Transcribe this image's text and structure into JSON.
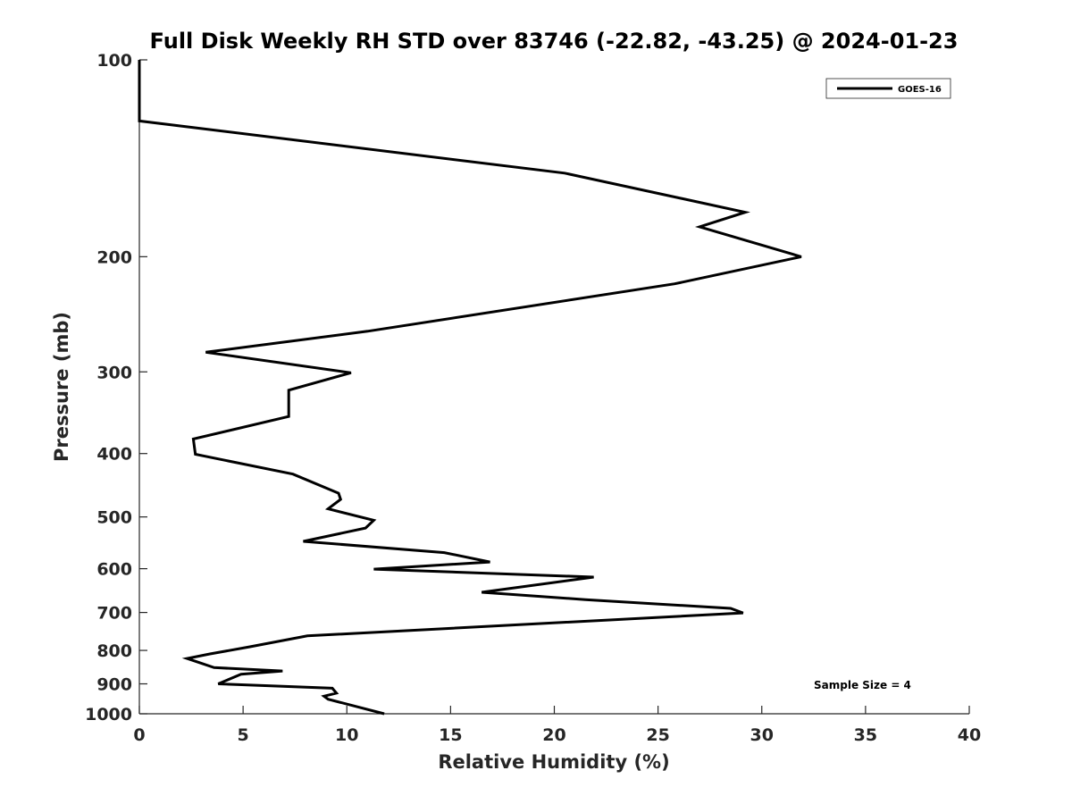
{
  "chart_data": {
    "type": "line",
    "title": "Full Disk Weekly RH STD over 83746 (-22.82, -43.25) @ 2024-01-23",
    "xlabel": "Relative Humidity (%)",
    "ylabel": "Pressure (mb)",
    "xlim": [
      0,
      40
    ],
    "ylim": [
      100,
      1000
    ],
    "y_scale": "log",
    "y_reversed": true,
    "x_ticks": [
      0,
      5,
      10,
      15,
      20,
      25,
      30,
      35,
      40
    ],
    "y_ticks": [
      100,
      200,
      300,
      400,
      500,
      600,
      700,
      800,
      900,
      1000
    ],
    "grid": false,
    "legend_position": "top-right",
    "annotation": "Sample Size = 4",
    "series": [
      {
        "name": "GOES-16",
        "color": "#000000",
        "x": [
          0.0,
          0.0,
          20.5,
          29.2,
          27.0,
          31.9,
          25.8,
          11.0,
          3.2,
          10.2,
          7.2,
          7.2,
          7.2,
          2.6,
          2.7,
          7.4,
          9.6,
          9.7,
          9.1,
          11.3,
          10.9,
          7.9,
          14.7,
          16.9,
          11.3,
          21.9,
          16.5,
          21.5,
          28.5,
          29.1,
          8.1,
          5.3,
          3.4,
          2.3,
          3.6,
          6.9,
          4.9,
          3.8,
          9.3,
          9.5,
          8.9,
          9.1,
          11.8
        ]
      }
    ],
    "y": [
      100,
      124,
      149,
      171,
      180,
      200,
      220,
      260,
      280,
      301,
      320,
      350,
      351,
      380,
      401,
      430,
      460,
      470,
      486,
      506,
      520,
      545,
      567,
      586,
      601,
      618,
      652,
      669,
      690,
      701,
      760,
      790,
      810,
      823,
      850,
      860,
      870,
      900,
      914,
      930,
      940,
      950,
      1000
    ]
  }
}
